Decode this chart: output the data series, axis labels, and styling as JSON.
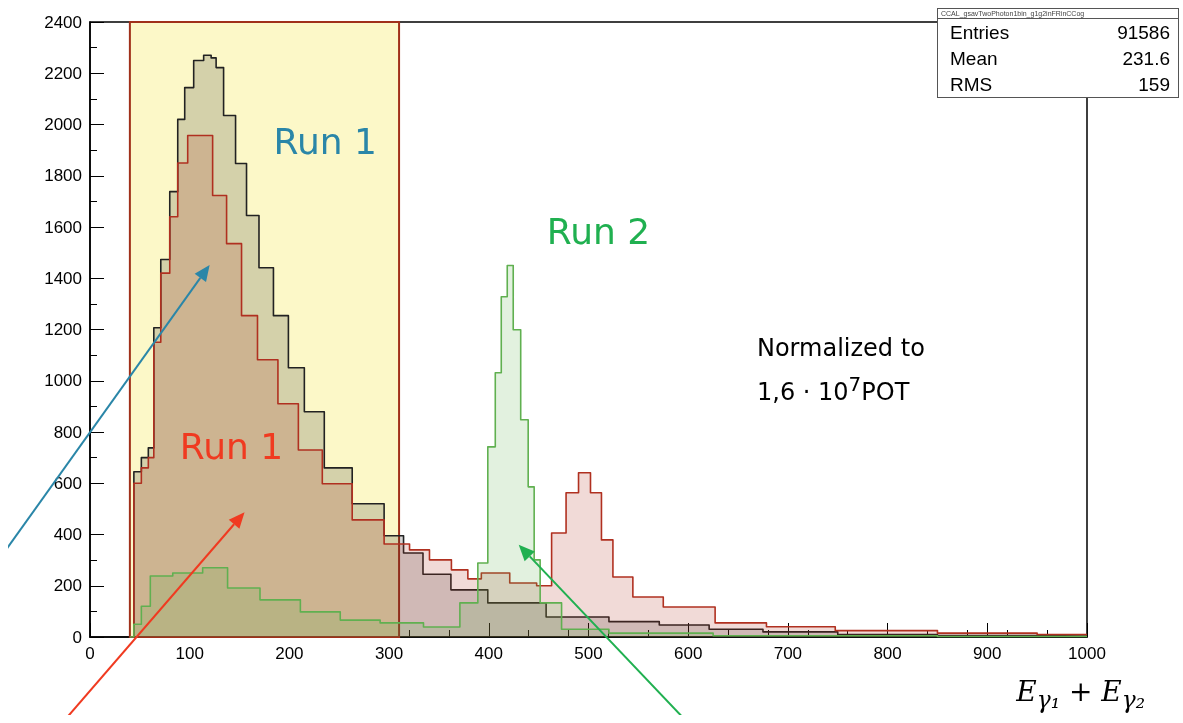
{
  "chart_data": {
    "type": "step",
    "title": "CCAL_gsavTwoPhoton1bin_g1g2inFRinCCog",
    "xlabel": "E$_{γ₁}$ + E$_{γ₂}$",
    "xlim": [
      0,
      1000
    ],
    "xticks": [
      0,
      100,
      200,
      300,
      400,
      500,
      600,
      700,
      800,
      900,
      1000
    ],
    "ylim": [
      0,
      2400
    ],
    "yticks": [
      0,
      200,
      400,
      600,
      800,
      1000,
      1200,
      1400,
      1600,
      1800,
      2000,
      2200,
      2400
    ],
    "grid": false,
    "bands": [
      {
        "axis": "x",
        "from": 40,
        "to": 310,
        "color": "#fcf8c8"
      }
    ],
    "series": [
      {
        "color": "#222222",
        "x": [
          40,
          48,
          55,
          62,
          66,
          76,
          84,
          92,
          98,
          110,
          118,
          125,
          128,
          140,
          152,
          162,
          177,
          191,
          207,
          223,
          247,
          279,
          311,
          318,
          350,
          374,
          424,
          491,
          550,
          592,
          650,
          700,
          800,
          900,
          1000
        ],
        "values": [
          0,
          645,
          700,
          738,
          1207,
          1473,
          1738,
          2020,
          2144,
          2250,
          2270,
          2260,
          2222,
          2035,
          1848,
          1645,
          1441,
          1254,
          1051,
          879,
          660,
          520,
          395,
          328,
          245,
          184,
          133,
          78,
          60,
          47,
          30,
          20,
          10,
          6,
          4
        ]
      },
      {
        "color": "#b03020",
        "x": [
          40,
          48,
          55,
          62,
          66,
          76,
          84,
          92,
          104,
          118,
          128,
          146,
          158,
          178,
          199,
          219,
          247,
          279,
          311,
          330,
          351,
          374,
          384,
          401,
          441,
          455,
          471,
          484,
          496,
          508,
          518,
          531,
          558,
          592,
          662,
          695,
          800,
          900,
          1000
        ],
        "values": [
          0,
          600,
          660,
          700,
          1150,
          1420,
          1640,
          1850,
          1957,
          1957,
          1723,
          1535,
          1254,
          1082,
          910,
          730,
          598,
          457,
          363,
          340,
          301,
          262,
          227,
          250,
          211,
          200,
          406,
          563,
          641,
          563,
          379,
          234,
          156,
          117,
          55,
          40,
          25,
          15,
          10
        ]
      },
      {
        "color": "#60b050",
        "x": [
          40,
          48,
          55,
          66,
          100,
          126,
          150,
          191,
          231,
          271,
          311,
          358,
          384,
          394,
          404,
          409,
          416,
          421,
          428,
          436,
          443,
          448,
          455,
          491,
          550,
          700,
          1000
        ],
        "values": [
          0,
          50,
          120,
          238,
          250,
          270,
          191,
          145,
          98,
          66,
          55,
          39,
          133,
          289,
          742,
          1031,
          1328,
          1450,
          1199,
          848,
          586,
          301,
          133,
          30,
          15,
          5,
          2
        ]
      }
    ],
    "annotations": [
      "Entries 91586",
      "Mean 231.6",
      "RMS 159",
      "Run 1",
      "Run 2",
      "Run 1",
      "Normalized to\n1,6 · 10$^{7}$POT"
    ]
  }
}
